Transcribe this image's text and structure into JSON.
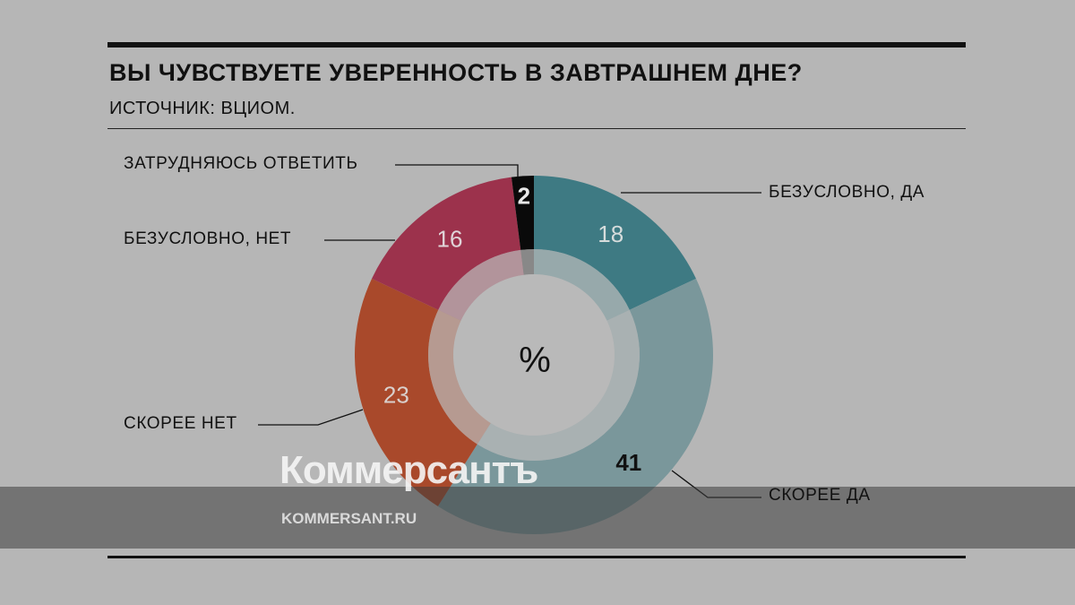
{
  "chart_data": {
    "type": "pie",
    "variant": "donut",
    "title": "ВЫ ЧУВСТВУЕТЕ УВЕРЕННОСТЬ В ЗАВТРАШНЕМ ДНЕ?",
    "subtitle": "ИСТОЧНИК: ВЦИОМ.",
    "center_label": "%",
    "slices": [
      {
        "label": "БЕЗУСЛОВНО, ДА",
        "value": 18,
        "color": "#3e7a83",
        "value_color": "#d6dcdc"
      },
      {
        "label": "СКОРЕЕ ДА",
        "value": 41,
        "color": "#7a979b",
        "value_color": "#111111"
      },
      {
        "label": "СКОРЕЕ НЕТ",
        "value": 23,
        "color": "#a9492b",
        "value_color": "#d9d0cc"
      },
      {
        "label": "БЕЗУСЛОВНО, НЕТ",
        "value": 16,
        "color": "#9c324c",
        "value_color": "#e0d4d8"
      },
      {
        "label": "ЗАТРУДНЯЮСЬ ОТВЕТИТЬ",
        "value": 2,
        "color": "#0a0a0a",
        "value_color": "#e8e8e8"
      }
    ]
  },
  "watermark": {
    "logo": "Коммерсантъ",
    "url": "KOMMERSANT.RU"
  }
}
